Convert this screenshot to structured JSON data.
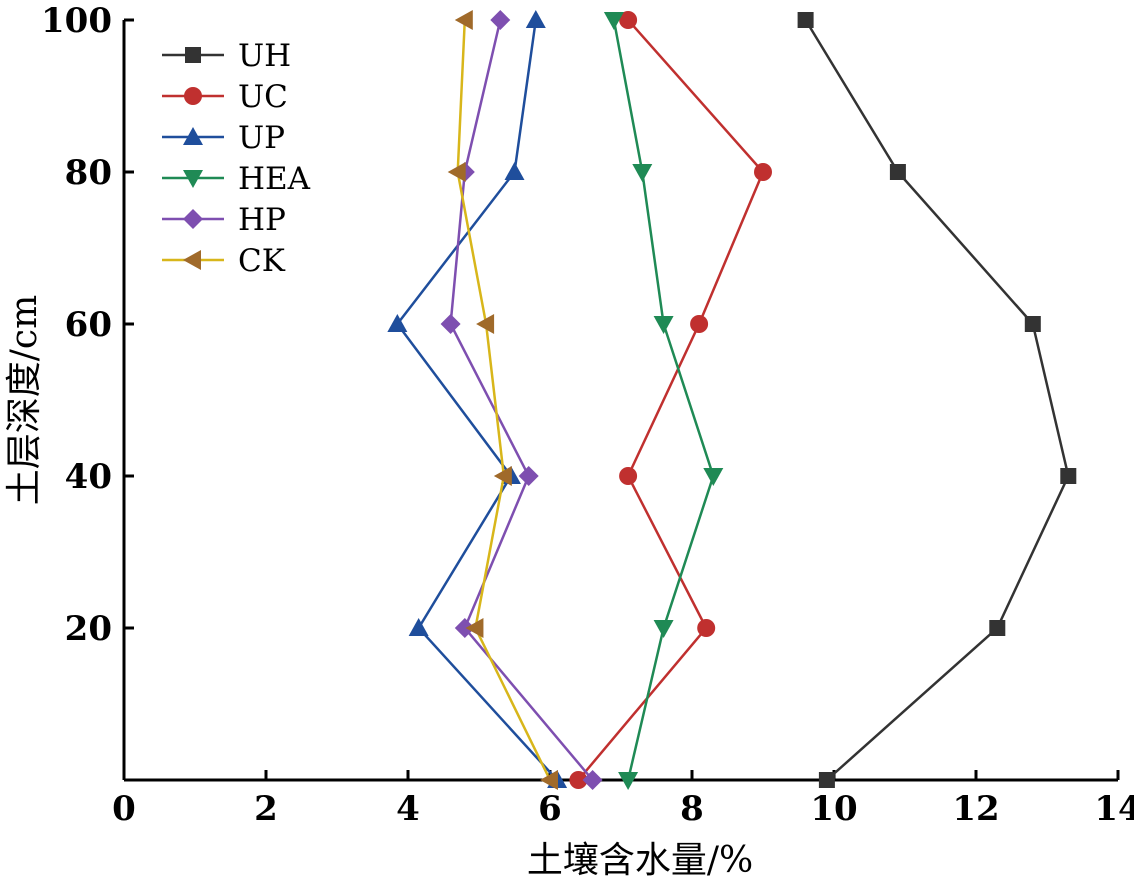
{
  "chart_data": {
    "type": "line",
    "title": "",
    "xlabel": "土壤含水量/%",
    "ylabel": "土层深度/cm",
    "xlim": [
      0,
      14
    ],
    "ylim": [
      0,
      100
    ],
    "xticks": [
      "0",
      "2",
      "4",
      "6",
      "8",
      "10",
      "12",
      "14"
    ],
    "yticks": [
      "20",
      "40",
      "60",
      "80",
      "100"
    ],
    "grid": false,
    "legend_position": "top-left",
    "series": [
      {
        "name": "UH",
        "color": "#333333",
        "marker": "square",
        "x": [
          9.9,
          12.3,
          13.3,
          12.8,
          10.9,
          9.6
        ],
        "y": [
          0,
          20,
          40,
          60,
          80,
          100
        ]
      },
      {
        "name": "UC",
        "color": "#c0302f",
        "marker": "circle",
        "x": [
          6.4,
          8.2,
          7.1,
          8.1,
          9.0,
          7.1
        ],
        "y": [
          0,
          20,
          40,
          60,
          80,
          100
        ]
      },
      {
        "name": "UP",
        "color": "#1f4e9c",
        "marker": "triangle-up",
        "x": [
          6.1,
          4.15,
          5.45,
          3.85,
          5.5,
          5.8
        ],
        "y": [
          0,
          20,
          40,
          60,
          80,
          100
        ]
      },
      {
        "name": "HEA",
        "color": "#1f8a55",
        "marker": "triangle-down",
        "x": [
          7.1,
          7.6,
          8.3,
          7.6,
          7.3,
          6.9
        ],
        "y": [
          0,
          20,
          40,
          60,
          80,
          100
        ]
      },
      {
        "name": "HP",
        "color": "#7e4fb0",
        "marker": "diamond",
        "x": [
          6.6,
          4.8,
          5.7,
          4.6,
          4.8,
          5.3
        ],
        "y": [
          0,
          20,
          40,
          60,
          80,
          100
        ]
      },
      {
        "name": "CK",
        "color": "#d8b61a",
        "marker": "triangle-left",
        "marker_color": "#a06a2a",
        "x": [
          6.0,
          4.95,
          5.35,
          5.1,
          4.7,
          4.8
        ],
        "y": [
          0,
          20,
          40,
          60,
          80,
          100
        ]
      }
    ]
  }
}
